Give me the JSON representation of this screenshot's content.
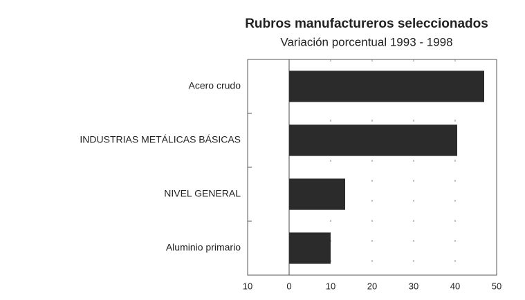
{
  "chart_data": {
    "type": "barh",
    "title": "Rubros manufactureros seleccionados",
    "subtitle": "Variación porcentual 1993 - 1998",
    "categories": [
      "Acero crudo",
      "INDUSTRIAS METÁLICAS BÁSICAS",
      "NIVEL GENERAL",
      "Aluminio primario"
    ],
    "values": [
      47,
      40.5,
      13.5,
      10
    ],
    "color": "#2b2b2b",
    "xlim": [
      -10,
      50
    ],
    "xticks": [
      {
        "value": -10,
        "label": "10"
      },
      0,
      10,
      20,
      30,
      40,
      50
    ],
    "grid": true
  }
}
